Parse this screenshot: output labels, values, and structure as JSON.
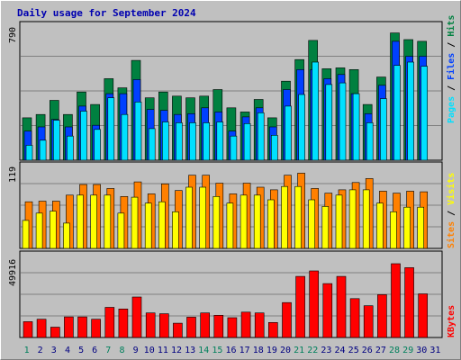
{
  "title": "Daily usage for September 2024",
  "colors": {
    "hits": "#008040",
    "files": "#0040ff",
    "pages": "#00e0ff",
    "visits": "#ff8000",
    "sites": "#ffff00",
    "kbytes": "#ff0000",
    "weekend_label": "#00805c",
    "weekday_label": "#000080"
  },
  "panels": {
    "top": {
      "max_label": "790",
      "legend": [
        "Pages",
        " / ",
        "Files",
        " / ",
        "Hits"
      ]
    },
    "mid": {
      "max_label": "119",
      "legend": [
        "Sites",
        " / ",
        "Visits"
      ]
    },
    "bot": {
      "max_label": "49916",
      "legend": [
        "KBytes"
      ]
    }
  },
  "chart_data": {
    "type": "bar",
    "title": "Daily usage for September 2024",
    "categories": [
      "1",
      "2",
      "3",
      "4",
      "5",
      "6",
      "7",
      "8",
      "9",
      "10",
      "11",
      "12",
      "13",
      "14",
      "15",
      "16",
      "17",
      "18",
      "19",
      "20",
      "21",
      "22",
      "23",
      "24",
      "25",
      "26",
      "27",
      "28",
      "29",
      "30",
      "31"
    ],
    "weekend_days": [
      1,
      7,
      8,
      14,
      15,
      21,
      22,
      28,
      29
    ],
    "series": [
      {
        "name": "Hits",
        "panel": "top",
        "values": [
          255,
          275,
          360,
          275,
          410,
          335,
          490,
          435,
          600,
          375,
          410,
          385,
          375,
          385,
          425,
          315,
          290,
          365,
          255,
          475,
          605,
          720,
          550,
          555,
          545,
          335,
          500,
          765,
          725,
          715,
          0
        ]
      },
      {
        "name": "Files",
        "panel": "top",
        "values": [
          175,
          200,
          245,
          200,
          325,
          210,
          400,
          400,
          485,
          305,
          300,
          275,
          280,
          315,
          290,
          175,
          260,
          315,
          200,
          425,
          545,
          545,
          490,
          515,
          400,
          280,
          450,
          715,
          625,
          625,
          0
        ]
      },
      {
        "name": "Pages",
        "panel": "top",
        "values": [
          90,
          120,
          240,
          145,
          295,
          185,
          375,
          275,
          350,
          190,
          230,
          225,
          225,
          225,
          230,
          145,
          220,
          285,
          150,
          325,
          395,
          590,
          455,
          465,
          400,
          225,
          370,
          570,
          590,
          565,
          0
        ]
      },
      {
        "name": "Visits",
        "panel": "mid",
        "values": [
          70,
          71,
          71,
          80,
          96,
          96,
          90,
          78,
          100,
          82,
          97,
          87,
          110,
          110,
          98,
          82,
          98,
          92,
          88,
          110,
          113,
          90,
          83,
          88,
          99,
          105,
          86,
          83,
          86,
          85,
          0
        ]
      },
      {
        "name": "Sites",
        "panel": "mid",
        "values": [
          42,
          53,
          56,
          38,
          80,
          80,
          80,
          53,
          77,
          68,
          70,
          55,
          92,
          92,
          78,
          68,
          80,
          80,
          73,
          93,
          93,
          73,
          63,
          80,
          88,
          88,
          68,
          55,
          62,
          62,
          0
        ]
      },
      {
        "name": "KBytes",
        "panel": "bot",
        "values": [
          10000,
          11500,
          6500,
          13000,
          13000,
          11500,
          19000,
          18000,
          25500,
          15500,
          15000,
          9000,
          12800,
          15500,
          14000,
          12500,
          16000,
          15500,
          9500,
          22000,
          38500,
          42000,
          34000,
          38500,
          24500,
          20000,
          27000,
          46500,
          44000,
          27500,
          0
        ]
      }
    ],
    "ylim_top": [
      0,
      790
    ],
    "ylim_mid": [
      0,
      119
    ],
    "ylim_bot": [
      0,
      49916
    ]
  }
}
